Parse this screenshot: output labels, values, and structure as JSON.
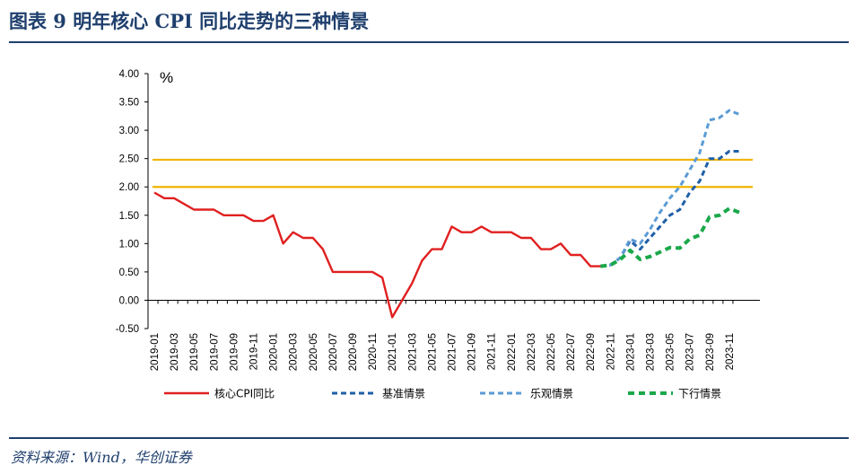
{
  "figure_title": "图表 9   明年核心 CPI 同比走势的三种情景",
  "source": "资料来源：Wind，华创证券",
  "chart_data": {
    "type": "line",
    "unit_label": "%",
    "ylim": [
      -0.5,
      4.0
    ],
    "yticks": [
      "4.00",
      "3.50",
      "3.00",
      "2.50",
      "2.00",
      "1.50",
      "1.00",
      "0.50",
      "0.00",
      "-0.50"
    ],
    "x_start": "2019-01",
    "x_labels": [
      "2019-01",
      "2019-03",
      "2019-05",
      "2019-07",
      "2019-09",
      "2019-11",
      "2020-01",
      "2020-03",
      "2020-05",
      "2020-07",
      "2020-09",
      "2020-11",
      "2021-01",
      "2021-03",
      "2021-05",
      "2021-07",
      "2021-09",
      "2021-11",
      "2022-01",
      "2022-03",
      "2022-05",
      "2022-07",
      "2022-09",
      "2022-11",
      "2023-01",
      "2023-03",
      "2023-05",
      "2023-07",
      "2023-09",
      "2023-11"
    ],
    "reference_lines": [
      {
        "value": 2.48,
        "color": "#f0b400"
      },
      {
        "value": 2.0,
        "color": "#f0b400"
      }
    ],
    "series": [
      {
        "name": "核心CPI同比",
        "color": "#e02020",
        "dash": "solid",
        "start": "2019-01",
        "values": [
          1.9,
          1.8,
          1.8,
          1.7,
          1.6,
          1.6,
          1.6,
          1.5,
          1.5,
          1.5,
          1.4,
          1.4,
          1.5,
          1.0,
          1.2,
          1.1,
          1.1,
          0.9,
          0.5,
          0.5,
          0.5,
          0.5,
          0.5,
          0.4,
          -0.3,
          0.0,
          0.3,
          0.7,
          0.9,
          0.9,
          1.3,
          1.2,
          1.2,
          1.3,
          1.2,
          1.2,
          1.2,
          1.1,
          1.1,
          0.9,
          0.9,
          1.0,
          0.8,
          0.8,
          0.6,
          0.6
        ]
      },
      {
        "name": "基准情景",
        "color": "#1f5fa8",
        "dash": "dashed",
        "start": "2022-10",
        "values": [
          0.6,
          0.62,
          0.75,
          1.05,
          0.9,
          1.1,
          1.3,
          1.5,
          1.6,
          1.9,
          2.1,
          2.5,
          2.5,
          2.63,
          2.63
        ]
      },
      {
        "name": "乐观情景",
        "color": "#5b9bd5",
        "dash": "dashed",
        "start": "2022-10",
        "values": [
          0.6,
          0.62,
          0.75,
          1.08,
          1.0,
          1.25,
          1.55,
          1.8,
          2.0,
          2.3,
          2.6,
          3.18,
          3.22,
          3.35,
          3.28
        ]
      },
      {
        "name": "下行情景",
        "color": "#1aa84a",
        "dash": "dashed",
        "start": "2022-10",
        "values": [
          0.6,
          0.62,
          0.72,
          0.88,
          0.72,
          0.77,
          0.85,
          0.93,
          0.92,
          1.08,
          1.15,
          1.47,
          1.5,
          1.62,
          1.55
        ]
      }
    ],
    "legend_position": "bottom"
  }
}
